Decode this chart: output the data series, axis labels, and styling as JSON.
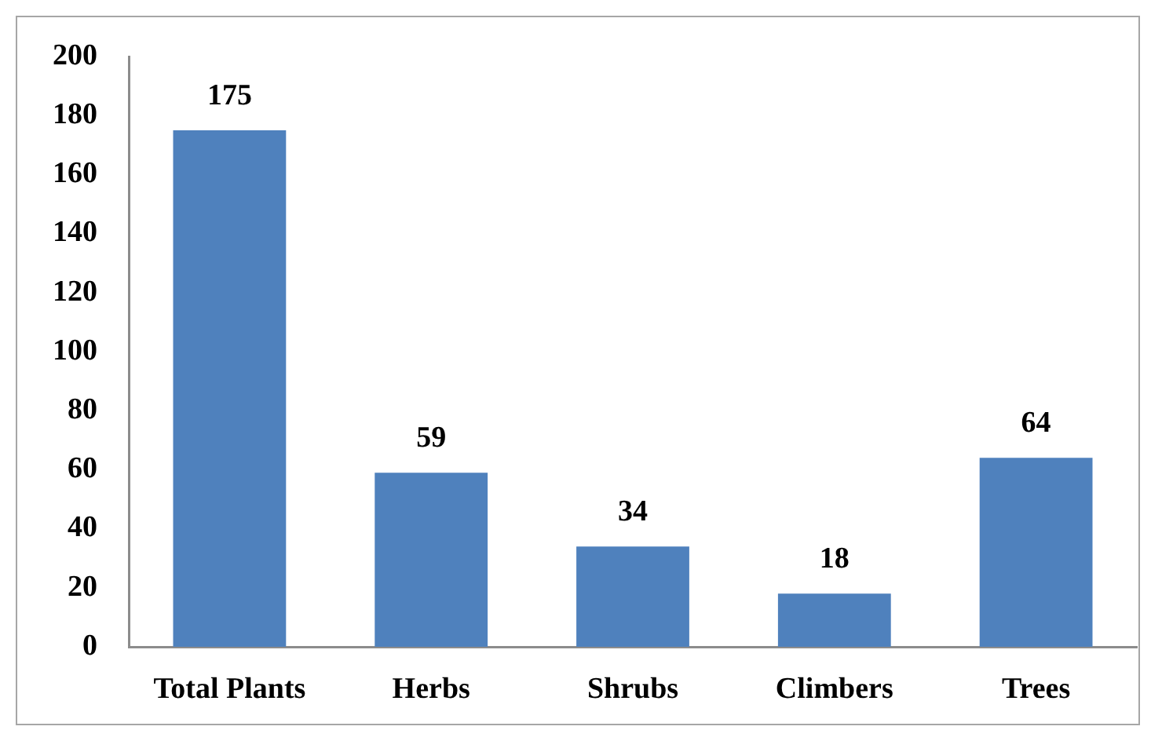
{
  "chart_data": {
    "type": "bar",
    "categories": [
      "Total Plants",
      "Herbs",
      "Shrubs",
      "Climbers",
      "Trees"
    ],
    "values": [
      175,
      59,
      34,
      18,
      64
    ],
    "color": "#4f81bd",
    "ylim": [
      0,
      200
    ],
    "yticks": [
      0,
      20,
      40,
      60,
      80,
      100,
      120,
      140,
      160,
      180,
      200
    ],
    "data_labels": true
  }
}
